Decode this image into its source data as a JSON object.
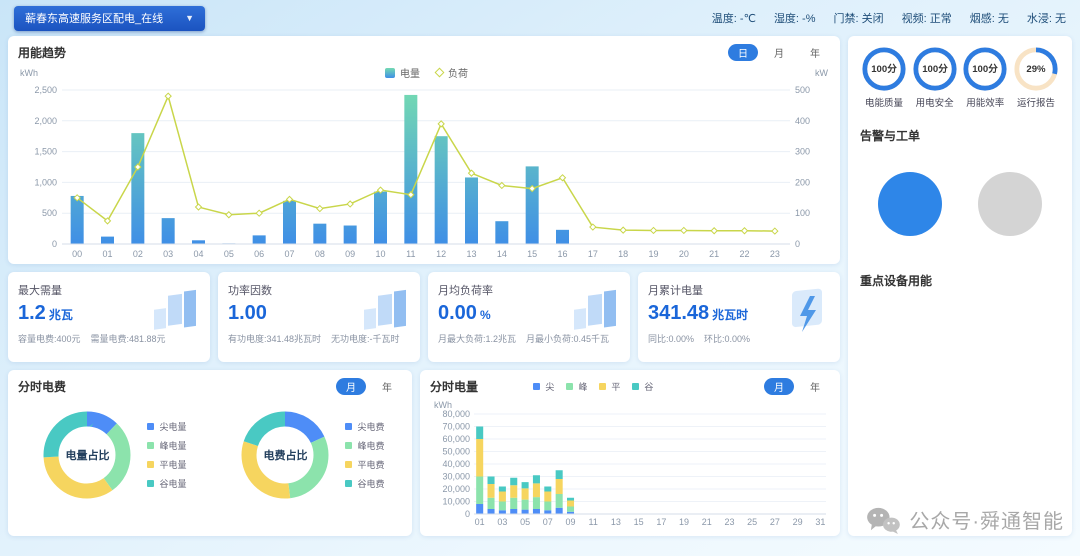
{
  "topbar": {
    "station": "蕲春东高速服务区配电_在线",
    "env": [
      {
        "label": "温度",
        "value": "-℃"
      },
      {
        "label": "湿度",
        "value": "-%"
      },
      {
        "label": "门禁",
        "value": "关闭"
      },
      {
        "label": "视频",
        "value": "正常"
      },
      {
        "label": "烟感",
        "value": "无"
      },
      {
        "label": "水浸",
        "value": "无"
      }
    ]
  },
  "trend": {
    "title": "用能趋势",
    "tabs": [
      "日",
      "月",
      "年"
    ],
    "active_tab": "日",
    "unit_left": "kWh",
    "unit_right": "kW",
    "chart_data": {
      "type": "bar+line",
      "x": [
        "00",
        "01",
        "02",
        "03",
        "04",
        "05",
        "06",
        "07",
        "08",
        "09",
        "10",
        "11",
        "12",
        "13",
        "14",
        "15",
        "16",
        "17",
        "18",
        "19",
        "20",
        "21",
        "22",
        "23"
      ],
      "series": [
        {
          "name": "电量",
          "type": "bar",
          "axis": "left",
          "values": [
            780,
            120,
            1800,
            420,
            60,
            10,
            140,
            700,
            330,
            300,
            850,
            2420,
            1750,
            1080,
            370,
            1260,
            230,
            0,
            0,
            0,
            0,
            0,
            0,
            0
          ]
        },
        {
          "name": "负荷",
          "type": "line",
          "axis": "right",
          "values": [
            150,
            75,
            250,
            480,
            120,
            95,
            100,
            145,
            115,
            130,
            175,
            160,
            390,
            230,
            190,
            180,
            215,
            55,
            45,
            44,
            44,
            43,
            43,
            42
          ]
        }
      ],
      "y_left": {
        "min": 0,
        "max": 2500,
        "step": 500
      },
      "y_right": {
        "min": 0,
        "max": 500,
        "step": 100
      },
      "legend_position": "top",
      "grid": true
    }
  },
  "stats": {
    "cards": [
      {
        "title": "最大需量",
        "value": "1.2",
        "unit": "兆瓦",
        "sub1": "容量电费:400元",
        "sub2": "需量电费:481.88元"
      },
      {
        "title": "功率因数",
        "value": "1.00",
        "unit": "",
        "sub1": "有功电度:341.48兆瓦时",
        "sub2": "无功电度:-千瓦时"
      },
      {
        "title": "月均负荷率",
        "value": "0.00",
        "unit": "%",
        "sub1": "月最大负荷:1.2兆瓦",
        "sub2": "月最小负荷:0.45千瓦"
      },
      {
        "title": "月累计电量",
        "value": "341.48",
        "unit": "兆瓦时",
        "sub1": "同比:0.00%",
        "sub2": "环比:0.00%"
      }
    ]
  },
  "tou_fee": {
    "title": "分时电费",
    "tabs": [
      "月",
      "年"
    ],
    "active_tab": "月",
    "colors": [
      "#4e8df7",
      "#8ce3ac",
      "#f6d55f",
      "#49c9c3"
    ],
    "chart_data": [
      {
        "type": "pie",
        "title": "电量占比",
        "labels": [
          "尖电量",
          "峰电量",
          "平电量",
          "谷电量"
        ],
        "values": [
          12,
          28,
          34,
          26
        ]
      },
      {
        "type": "pie",
        "title": "电费占比",
        "labels": [
          "尖电费",
          "峰电费",
          "平电费",
          "谷电费"
        ],
        "values": [
          18,
          30,
          32,
          20
        ]
      }
    ]
  },
  "tou_energy": {
    "title": "分时电量",
    "tabs": [
      "月",
      "年"
    ],
    "active_tab": "月",
    "unit": "kWh",
    "chart_data": {
      "type": "bar",
      "stacked": true,
      "x": [
        "01",
        "02",
        "03",
        "04",
        "05",
        "06",
        "07",
        "08",
        "09",
        "10",
        "11",
        "12",
        "13",
        "14",
        "15",
        "16",
        "17",
        "18",
        "19",
        "20",
        "21",
        "22",
        "23",
        "24",
        "25",
        "26",
        "27",
        "28",
        "29",
        "30",
        "31"
      ],
      "series": [
        {
          "name": "尖",
          "color": "#4e8df7",
          "values": [
            8000,
            4000,
            3000,
            4000,
            3500,
            4000,
            3000,
            5000,
            1800,
            0,
            0,
            0,
            0,
            0,
            0,
            0,
            0,
            0,
            0,
            0,
            0,
            0,
            0,
            0,
            0,
            0,
            0,
            0,
            0,
            0,
            0
          ]
        },
        {
          "name": "峰",
          "color": "#8ce3ac",
          "values": [
            22000,
            9000,
            7000,
            9000,
            8000,
            9500,
            7000,
            11000,
            4200,
            0,
            0,
            0,
            0,
            0,
            0,
            0,
            0,
            0,
            0,
            0,
            0,
            0,
            0,
            0,
            0,
            0,
            0,
            0,
            0,
            0,
            0
          ]
        },
        {
          "name": "平",
          "color": "#f6d55f",
          "values": [
            30000,
            11000,
            8000,
            10000,
            9000,
            11000,
            8000,
            12000,
            4800,
            0,
            0,
            0,
            0,
            0,
            0,
            0,
            0,
            0,
            0,
            0,
            0,
            0,
            0,
            0,
            0,
            0,
            0,
            0,
            0,
            0,
            0
          ]
        },
        {
          "name": "谷",
          "color": "#49c9c3",
          "values": [
            10000,
            6000,
            4000,
            6000,
            5000,
            6500,
            4000,
            7000,
            2200,
            0,
            0,
            0,
            0,
            0,
            0,
            0,
            0,
            0,
            0,
            0,
            0,
            0,
            0,
            0,
            0,
            0,
            0,
            0,
            0,
            0,
            0
          ]
        }
      ],
      "ylim": [
        0,
        80000
      ],
      "ystep": 10000,
      "legend_position": "top"
    }
  },
  "right_panel": {
    "gauges": [
      {
        "value": "100分",
        "label": "电能质量",
        "percent": 100
      },
      {
        "value": "100分",
        "label": "用电安全",
        "percent": 100
      },
      {
        "value": "100分",
        "label": "用能效率",
        "percent": 100
      },
      {
        "value": "29%",
        "label": "运行报告",
        "percent": 29
      }
    ],
    "alarm_title": "告警与工单",
    "device_title": "重点设备用能"
  },
  "watermark": "公众号·舜通智能",
  "colors": {
    "accent": "#2e7ce0",
    "bar_gradient_top": "#74dab2",
    "bar_gradient_bottom": "#3f8fe6",
    "load_line": "#c9d64a",
    "gauge_track": "#f8e3c5",
    "alarm_circle_blue": "#2e86e8",
    "alarm_circle_gray": "#d4d4d4"
  }
}
